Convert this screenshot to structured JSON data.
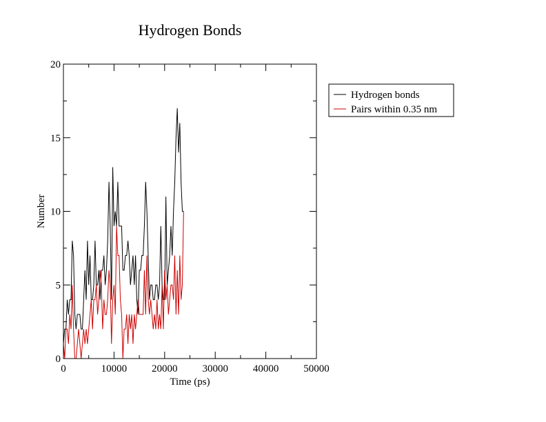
{
  "chart_data": {
    "type": "line",
    "title": "Hydrogen Bonds",
    "xlabel": "Time (ps)",
    "ylabel": "Number",
    "xlim": [
      0,
      50000
    ],
    "ylim": [
      0,
      20
    ],
    "x_ticks": [
      "0",
      "10000",
      "20000",
      "30000",
      "40000",
      "50000"
    ],
    "y_ticks": [
      "0",
      "5",
      "10",
      "15",
      "20"
    ],
    "grid": false,
    "legend_position": "right, outside plot",
    "x_step": 250,
    "series": [
      {
        "name": "Hydrogen bonds",
        "color": "#000000",
        "values": [
          1,
          2,
          2,
          4,
          3,
          4,
          4,
          8,
          7,
          3,
          2,
          3,
          3,
          3,
          2,
          2,
          4,
          6,
          4,
          8,
          5,
          7,
          4,
          4,
          5,
          8,
          5,
          5,
          6,
          4,
          6,
          6,
          7,
          5,
          6,
          8,
          12,
          9,
          4,
          13,
          9,
          10,
          9,
          12,
          9,
          9,
          9,
          6,
          6,
          7,
          7,
          8,
          7,
          5,
          6,
          7,
          5,
          7,
          4,
          3,
          6,
          6,
          7,
          7,
          9,
          12,
          10,
          7,
          4,
          5,
          5,
          4,
          4,
          5,
          5,
          4,
          5,
          9,
          5,
          4,
          4,
          11,
          5,
          6,
          7,
          9,
          7,
          10,
          12,
          15,
          17,
          14,
          16,
          12,
          10,
          10
        ]
      },
      {
        "name": "Pairs within 0.35 nm",
        "color": "#cc0000",
        "values": [
          1,
          0,
          2,
          2,
          1,
          3,
          2,
          5,
          2,
          0,
          0,
          1,
          2,
          1,
          0,
          1,
          2,
          1,
          2,
          1,
          2,
          3,
          4,
          2,
          4,
          4,
          5,
          3,
          4,
          6,
          5,
          2,
          4,
          3,
          3,
          4,
          6,
          5,
          1,
          4,
          5,
          3,
          9,
          7,
          7,
          4,
          3,
          0,
          2,
          2,
          3,
          1,
          3,
          2,
          3,
          1,
          3,
          2,
          3,
          4,
          3,
          3,
          3,
          3,
          6,
          3,
          7,
          4,
          3,
          4,
          3,
          2,
          3,
          2,
          4,
          2,
          3,
          2,
          5,
          2,
          6,
          4,
          5,
          3,
          4,
          5,
          5,
          4,
          7,
          3,
          6,
          3,
          7,
          4,
          5,
          10
        ]
      }
    ]
  }
}
